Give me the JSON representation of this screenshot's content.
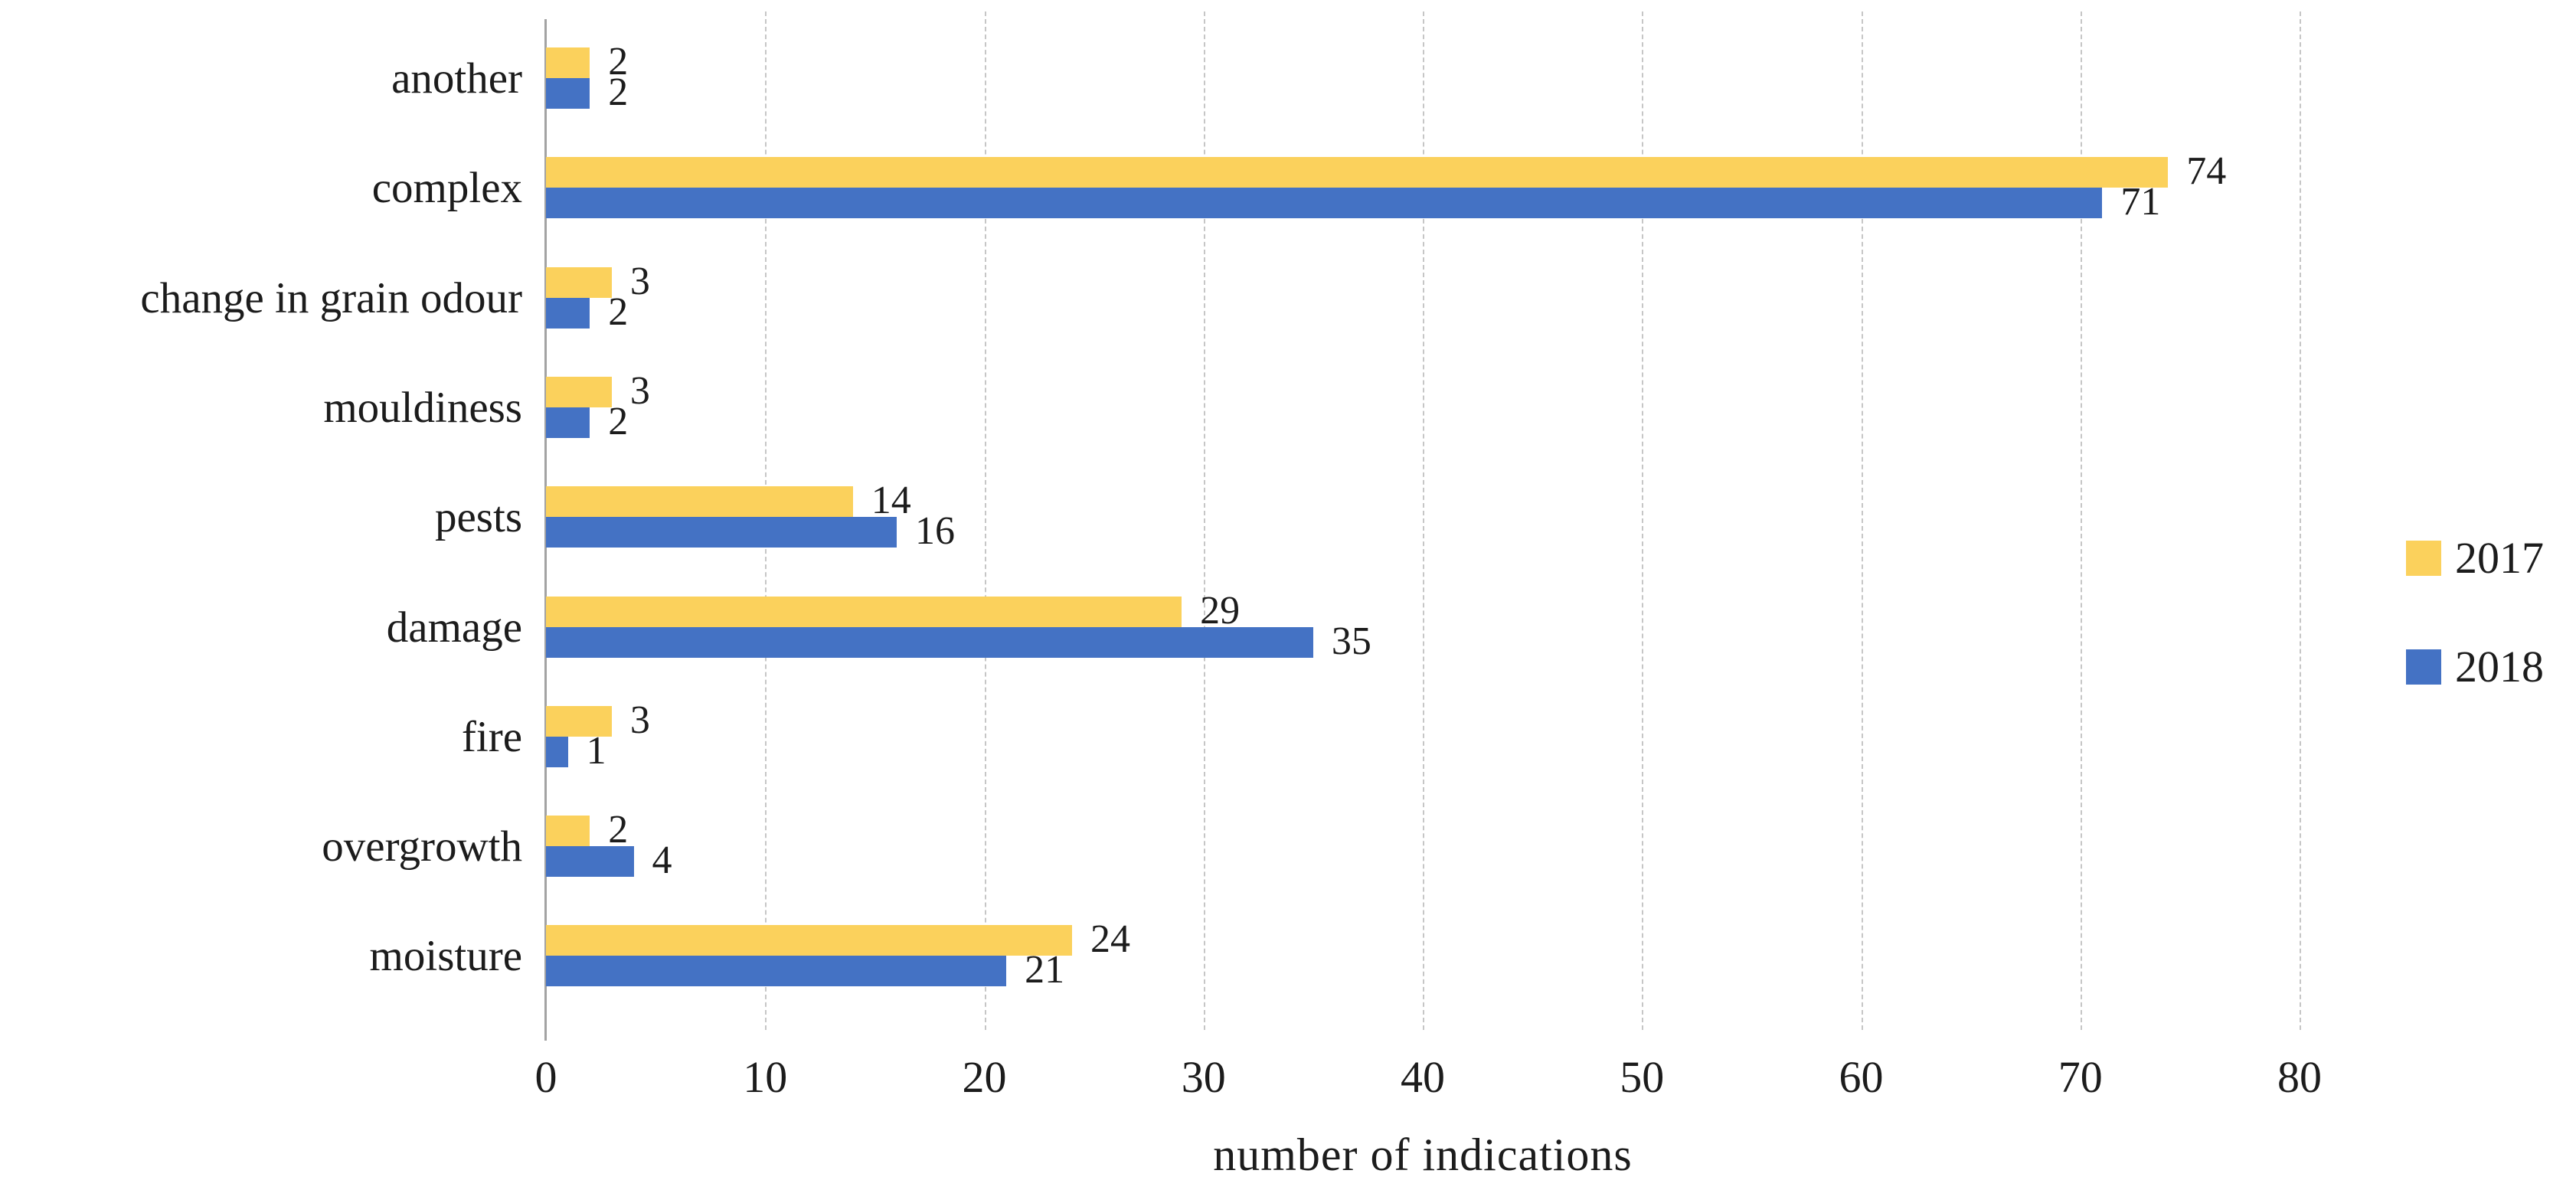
{
  "chart_data": {
    "type": "bar",
    "orientation": "horizontal",
    "title": "",
    "xlabel": "number of indications",
    "ylabel": "",
    "categories": [
      "another",
      "complex",
      "change in grain odour",
      "mouldiness",
      "pests",
      "damage",
      "fire",
      "overgrowth",
      "moisture"
    ],
    "series": [
      {
        "name": "2017",
        "color": "#FBD15C",
        "values": [
          2,
          74,
          3,
          3,
          14,
          29,
          3,
          2,
          24
        ]
      },
      {
        "name": "2018",
        "color": "#4472C4",
        "values": [
          2,
          71,
          2,
          2,
          16,
          35,
          1,
          4,
          21
        ]
      }
    ],
    "xlim": [
      0,
      80
    ],
    "xticks": [
      0,
      10,
      20,
      30,
      40,
      50,
      60,
      70,
      80
    ],
    "grid": true,
    "gridline_color": "#c6c6c6",
    "axis_line_color": "#a3a3a3",
    "data_label_color": "#1c1c1c",
    "legend_position": "right"
  }
}
